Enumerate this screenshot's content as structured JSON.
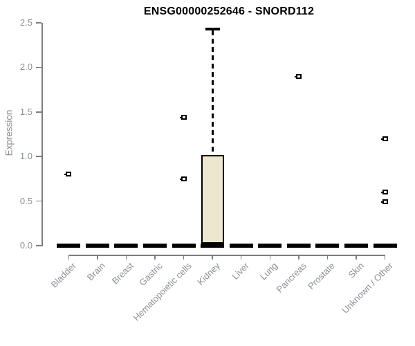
{
  "title": "ENSG00000252646 - SNORD112",
  "colors": {
    "background": "#FFFFFF",
    "box_fill": "#EDE8CD",
    "axis_line": "#7D7D7D",
    "label_gray": "#8A8F98",
    "mark_black": "#000000",
    "title_black": "#000000"
  },
  "chart_data": {
    "type": "boxplot",
    "title": "ENSG00000252646 - SNORD112",
    "xlabel": "",
    "ylabel": "Expression",
    "ylim": [
      0,
      2.5
    ],
    "yticks": [
      "0.0",
      "0.5",
      "1.0",
      "1.5",
      "2.0",
      "2.5"
    ],
    "grid": false,
    "legend": false,
    "categories": [
      "Bladder",
      "Brain",
      "Breast",
      "Gastric",
      "Hematopoietic cells",
      "Kidney",
      "Liver",
      "Lung",
      "Pancreas",
      "Prostate",
      "Skin",
      "Unknown / Other"
    ],
    "boxes": [
      {
        "label": "Bladder",
        "median": 0,
        "q1": 0,
        "q3": 0,
        "whisker_low": 0,
        "whisker_high": 0,
        "outliers": [
          0.8
        ]
      },
      {
        "label": "Brain",
        "median": 0,
        "q1": 0,
        "q3": 0,
        "whisker_low": 0,
        "whisker_high": 0,
        "outliers": []
      },
      {
        "label": "Breast",
        "median": 0,
        "q1": 0,
        "q3": 0,
        "whisker_low": 0,
        "whisker_high": 0,
        "outliers": []
      },
      {
        "label": "Gastric",
        "median": 0,
        "q1": 0,
        "q3": 0,
        "whisker_low": 0,
        "whisker_high": 0,
        "outliers": []
      },
      {
        "label": "Hematopoietic cells",
        "median": 0,
        "q1": 0,
        "q3": 0,
        "whisker_low": 0,
        "whisker_high": 0,
        "outliers": [
          1.44,
          0.75
        ]
      },
      {
        "label": "Kidney",
        "median": 0,
        "q1": 0.02,
        "q3": 1.02,
        "whisker_low": 0,
        "whisker_high": 2.43,
        "outliers": []
      },
      {
        "label": "Liver",
        "median": 0,
        "q1": 0,
        "q3": 0,
        "whisker_low": 0,
        "whisker_high": 0,
        "outliers": []
      },
      {
        "label": "Lung",
        "median": 0,
        "q1": 0,
        "q3": 0,
        "whisker_low": 0,
        "whisker_high": 0,
        "outliers": []
      },
      {
        "label": "Pancreas",
        "median": 0,
        "q1": 0,
        "q3": 0,
        "whisker_low": 0,
        "whisker_high": 0,
        "outliers": [
          1.9
        ]
      },
      {
        "label": "Prostate",
        "median": 0,
        "q1": 0,
        "q3": 0,
        "whisker_low": 0,
        "whisker_high": 0,
        "outliers": []
      },
      {
        "label": "Skin",
        "median": 0,
        "q1": 0,
        "q3": 0,
        "whisker_low": 0,
        "whisker_high": 0,
        "outliers": []
      },
      {
        "label": "Unknown / Other",
        "median": 0,
        "q1": 0,
        "q3": 0,
        "whisker_low": 0,
        "whisker_high": 0,
        "outliers": [
          1.2,
          0.6,
          0.49
        ]
      }
    ]
  }
}
